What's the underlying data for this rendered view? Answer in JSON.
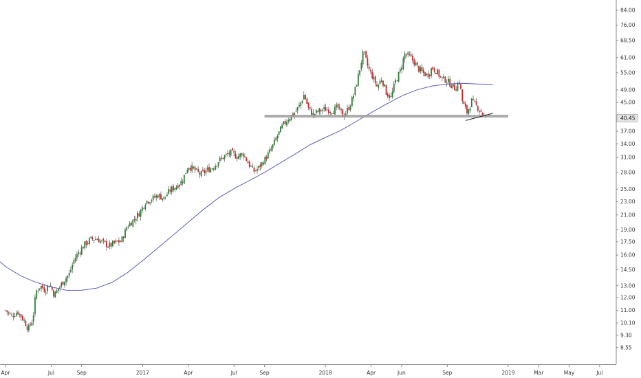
{
  "chart_data": {
    "type": "candlestick",
    "y_scale": "log",
    "ylim": [
      8.0,
      88.0
    ],
    "grid": false,
    "legend": "none",
    "y_ticks": [
      "84.00",
      "76.00",
      "68.50",
      "61.00",
      "55.00",
      "49.00",
      "45.00",
      "40.45",
      "37.00",
      "34.00",
      "31.00",
      "28.00",
      "25.00",
      "23.00",
      "21.00",
      "19.00",
      "17.50",
      "16.00",
      "14.50",
      "13.00",
      "12.00",
      "11.00",
      "10.10",
      "9.30",
      "8.55"
    ],
    "current_price_label": "40.45",
    "current_price": 40.45,
    "x_ticks": [
      {
        "label": "Apr",
        "t": 0.0
      },
      {
        "label": "Jul",
        "t": 3.0
      },
      {
        "label": "Sep",
        "t": 5.0
      },
      {
        "label": "2017",
        "t": 9.0
      },
      {
        "label": "Apr",
        "t": 12.0
      },
      {
        "label": "Jul",
        "t": 15.0
      },
      {
        "label": "Sep",
        "t": 17.0
      },
      {
        "label": "2018",
        "t": 21.0
      },
      {
        "label": "Apr",
        "t": 24.0
      },
      {
        "label": "Jun",
        "t": 26.0
      },
      {
        "label": "Sep",
        "t": 29.0
      },
      {
        "label": "2019",
        "t": 33.0
      },
      {
        "label": "Mar",
        "t": 35.0
      },
      {
        "label": "May",
        "t": 37.0
      },
      {
        "label": "Jul",
        "t": 39.0
      }
    ],
    "price_path": [
      [
        0.0,
        11.0
      ],
      [
        0.4,
        10.6
      ],
      [
        0.8,
        10.9
      ],
      [
        1.2,
        10.3
      ],
      [
        1.5,
        9.7
      ],
      [
        1.8,
        10.4
      ],
      [
        2.0,
        12.5
      ],
      [
        2.3,
        13.0
      ],
      [
        2.6,
        12.6
      ],
      [
        2.9,
        13.2
      ],
      [
        3.2,
        12.2
      ],
      [
        3.5,
        12.8
      ],
      [
        3.9,
        13.6
      ],
      [
        4.2,
        14.1
      ],
      [
        4.5,
        15.5
      ],
      [
        4.8,
        16.3
      ],
      [
        5.2,
        17.2
      ],
      [
        5.6,
        17.8
      ],
      [
        6.0,
        17.9
      ],
      [
        6.4,
        17.4
      ],
      [
        6.8,
        17.0
      ],
      [
        7.2,
        17.4
      ],
      [
        7.6,
        17.6
      ],
      [
        8.0,
        19.5
      ],
      [
        8.4,
        20.3
      ],
      [
        8.8,
        21.3
      ],
      [
        9.2,
        23.0
      ],
      [
        9.6,
        23.4
      ],
      [
        10.0,
        24.0
      ],
      [
        10.4,
        23.5
      ],
      [
        10.8,
        24.8
      ],
      [
        11.2,
        25.5
      ],
      [
        11.6,
        26.5
      ],
      [
        12.0,
        29.3
      ],
      [
        12.4,
        28.5
      ],
      [
        12.8,
        27.6
      ],
      [
        13.2,
        28.4
      ],
      [
        13.6,
        29.0
      ],
      [
        14.0,
        30.3
      ],
      [
        14.4,
        31.3
      ],
      [
        14.8,
        32.0
      ],
      [
        15.2,
        31.2
      ],
      [
        15.6,
        31.8
      ],
      [
        16.0,
        29.5
      ],
      [
        16.3,
        28.2
      ],
      [
        16.6,
        28.8
      ],
      [
        17.0,
        30.5
      ],
      [
        17.4,
        32.5
      ],
      [
        17.8,
        35.5
      ],
      [
        18.2,
        38.5
      ],
      [
        18.6,
        40.5
      ],
      [
        19.0,
        42.0
      ],
      [
        19.3,
        44.0
      ],
      [
        19.6,
        47.5
      ],
      [
        19.9,
        43.0
      ],
      [
        20.2,
        41.5
      ],
      [
        20.6,
        42.5
      ],
      [
        21.0,
        43.0
      ],
      [
        21.4,
        42.5
      ],
      [
        21.8,
        43.5
      ],
      [
        22.2,
        41.0
      ],
      [
        22.6,
        44.0
      ],
      [
        22.9,
        48.0
      ],
      [
        23.2,
        55.0
      ],
      [
        23.5,
        63.5
      ],
      [
        23.8,
        57.0
      ],
      [
        24.1,
        53.5
      ],
      [
        24.4,
        50.0
      ],
      [
        24.7,
        53.0
      ],
      [
        25.0,
        48.0
      ],
      [
        25.3,
        46.5
      ],
      [
        25.6,
        52.0
      ],
      [
        25.9,
        55.5
      ],
      [
        26.2,
        62.5
      ],
      [
        26.5,
        61.5
      ],
      [
        26.8,
        59.5
      ],
      [
        27.1,
        56.5
      ],
      [
        27.4,
        55.0
      ],
      [
        27.7,
        54.0
      ],
      [
        28.0,
        57.0
      ],
      [
        28.3,
        55.5
      ],
      [
        28.6,
        53.0
      ],
      [
        28.9,
        52.5
      ],
      [
        29.2,
        51.0
      ],
      [
        29.5,
        49.5
      ],
      [
        29.8,
        52.0
      ],
      [
        30.0,
        45.0
      ],
      [
        30.3,
        42.0
      ],
      [
        30.6,
        45.5
      ],
      [
        30.9,
        44.0
      ],
      [
        31.2,
        42.5
      ],
      [
        31.4,
        41.0
      ],
      [
        31.6,
        40.45
      ]
    ],
    "ma_path": [
      [
        -1.0,
        16.2
      ],
      [
        0.0,
        14.8
      ],
      [
        1.0,
        13.9
      ],
      [
        2.0,
        13.3
      ],
      [
        3.0,
        12.9
      ],
      [
        4.0,
        12.6
      ],
      [
        5.0,
        12.6
      ],
      [
        6.0,
        12.8
      ],
      [
        7.0,
        13.3
      ],
      [
        8.0,
        14.2
      ],
      [
        9.0,
        15.4
      ],
      [
        10.0,
        16.8
      ],
      [
        11.0,
        18.3
      ],
      [
        12.0,
        20.0
      ],
      [
        13.0,
        21.8
      ],
      [
        14.0,
        23.6
      ],
      [
        15.0,
        25.1
      ],
      [
        16.0,
        26.5
      ],
      [
        17.0,
        28.0
      ],
      [
        18.0,
        29.8
      ],
      [
        19.0,
        31.7
      ],
      [
        20.0,
        33.8
      ],
      [
        21.0,
        35.5
      ],
      [
        22.0,
        37.2
      ],
      [
        23.0,
        39.5
      ],
      [
        24.0,
        42.0
      ],
      [
        25.0,
        44.5
      ],
      [
        26.0,
        47.0
      ],
      [
        27.0,
        49.0
      ],
      [
        28.0,
        50.3
      ],
      [
        29.0,
        51.0
      ],
      [
        30.0,
        51.2
      ],
      [
        31.0,
        51.0
      ],
      [
        32.0,
        50.9
      ]
    ],
    "support_line": {
      "price": 41.0,
      "t_start": 17.0,
      "t_end": 33.0
    },
    "trend_line": {
      "t_start": 30.2,
      "p_start": 39.8,
      "t_end": 32.0,
      "p_end": 41.8
    }
  }
}
